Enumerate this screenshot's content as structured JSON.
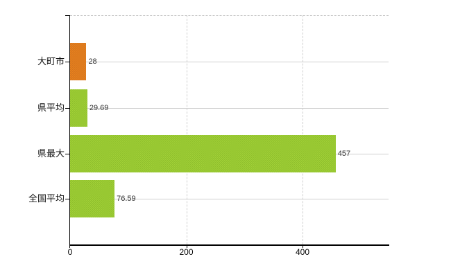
{
  "chart_data": {
    "type": "bar",
    "orientation": "horizontal",
    "title": "",
    "xlabel": "",
    "ylabel": "",
    "categories": [
      "大町市",
      "県平均",
      "県最大",
      "全国平均"
    ],
    "values": [
      28,
      29.69,
      457,
      76.59
    ],
    "value_labels": [
      "28",
      "29.69",
      "457",
      "76.59"
    ],
    "x_ticks": [
      0,
      200,
      400
    ],
    "x_tick_labels": [
      "0",
      "200",
      "400"
    ],
    "xlim": [
      0,
      550
    ],
    "grid": true,
    "legend": false,
    "bar_colors": [
      {
        "base": "#e8821e",
        "alt": "#d4741e"
      },
      {
        "base": "#a2d138",
        "alt": "#8fbf2c"
      },
      {
        "base": "#a2d138",
        "alt": "#8fbf2c"
      },
      {
        "base": "#a2d138",
        "alt": "#8fbf2c"
      }
    ],
    "colors": {
      "axis": "#000000",
      "gridline": "#cfcfcf",
      "top_border": "#c4c4c4",
      "category_label": "#111111",
      "value_label": "#333333"
    }
  }
}
